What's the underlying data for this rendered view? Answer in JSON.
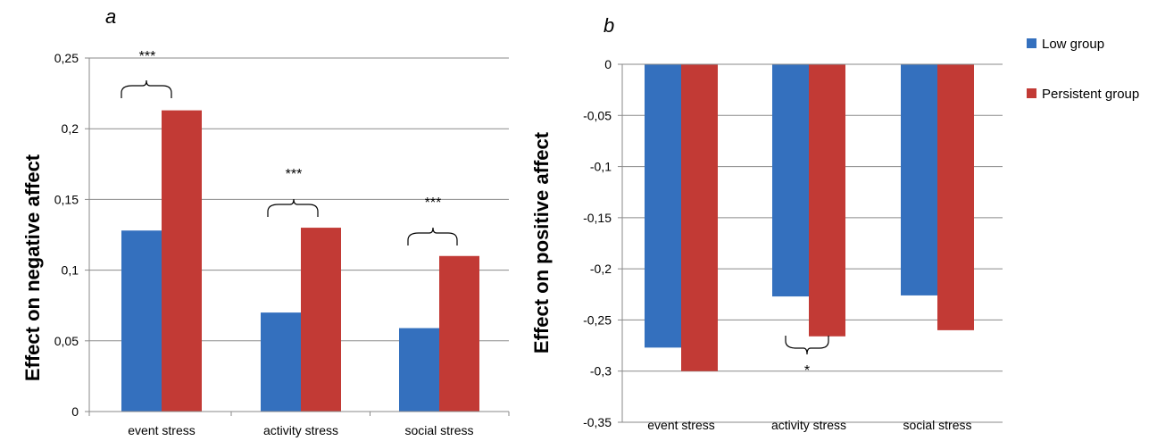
{
  "chart_data": [
    {
      "type": "bar",
      "panel_label": "a",
      "ylabel": "Effect on negative affect",
      "categories": [
        "event stress",
        "activity stress",
        "social stress"
      ],
      "series": [
        {
          "name": "Low group",
          "color": "#3470BE",
          "values": [
            0.128,
            0.07,
            0.059
          ]
        },
        {
          "name": "Persistent group",
          "color": "#C23A35",
          "values": [
            0.213,
            0.13,
            0.11
          ]
        }
      ],
      "ylim": [
        0,
        0.25
      ],
      "yticks": [
        "0",
        "0,05",
        "0,1",
        "0,15",
        "0,2",
        "0,25"
      ],
      "grid": true,
      "annotations": [
        "***",
        "***",
        "***"
      ]
    },
    {
      "type": "bar",
      "panel_label": "b",
      "ylabel": "Effect on positive affect",
      "categories": [
        "event stress",
        "activity stress",
        "social stress"
      ],
      "series": [
        {
          "name": "Low group",
          "color": "#3470BE",
          "values": [
            -0.277,
            -0.227,
            -0.226
          ]
        },
        {
          "name": "Persistent group",
          "color": "#C23A35",
          "values": [
            -0.3,
            -0.266,
            -0.26
          ]
        }
      ],
      "ylim": [
        -0.35,
        0
      ],
      "yticks": [
        "0",
        "-0,05",
        "-0,1",
        "-0,15",
        "-0,2",
        "-0,25",
        "-0,3",
        "-0,35"
      ],
      "grid": true,
      "annotations": [
        "*"
      ]
    }
  ],
  "legend": {
    "placement": "top-right",
    "items": [
      {
        "label": "Low group",
        "color": "#3470BE"
      },
      {
        "label": "Persistent group",
        "color": "#C23A35"
      }
    ]
  }
}
